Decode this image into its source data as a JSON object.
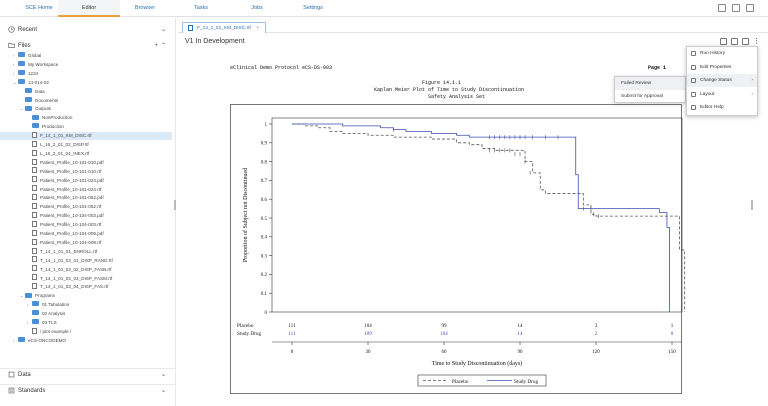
{
  "nav": {
    "tabs": [
      "SCE Home",
      "Editor",
      "Browser",
      "Tasks",
      "Jobs",
      "Settings"
    ],
    "active_tab": "Editor"
  },
  "sidebar": {
    "recent": "Recent",
    "files": "Files",
    "data": "Data",
    "standards": "Standards",
    "tree": [
      {
        "label": "Global",
        "kind": "folder",
        "depth": 1,
        "twisty": "›"
      },
      {
        "label": "My Workspace",
        "kind": "folder",
        "depth": 1,
        "twisty": "›"
      },
      {
        "label": "1234",
        "kind": "folder",
        "depth": 1,
        "twisty": "›"
      },
      {
        "label": "14-014-02",
        "kind": "folder",
        "depth": 1,
        "twisty": "⌄"
      },
      {
        "label": "Data",
        "kind": "folder",
        "depth": 2,
        "twisty": ""
      },
      {
        "label": "Documents",
        "kind": "folder",
        "depth": 2,
        "twisty": ""
      },
      {
        "label": "Outputs",
        "kind": "folder",
        "depth": 2,
        "twisty": "⌄"
      },
      {
        "label": "NonProduction",
        "kind": "folder",
        "depth": 3,
        "twisty": ""
      },
      {
        "label": "Production",
        "kind": "folder",
        "depth": 3,
        "twisty": ""
      },
      {
        "label": "F_14_1_01_KM_DISC.rtf",
        "kind": "file",
        "depth": 3,
        "twisty": "",
        "selected": true
      },
      {
        "label": "L_16_2_01_02_DISP.rtf",
        "kind": "file",
        "depth": 3,
        "twisty": ""
      },
      {
        "label": "L_16_2_01_04_INEX.rtf",
        "kind": "file",
        "depth": 3,
        "twisty": ""
      },
      {
        "label": "Patient_Profile_10-101-010.pdf",
        "kind": "file",
        "depth": 3,
        "twisty": ""
      },
      {
        "label": "Patient_Profile_10-101-010.rtf",
        "kind": "file",
        "depth": 3,
        "twisty": ""
      },
      {
        "label": "Patient_Profile_10-101-024.pdf",
        "kind": "file",
        "depth": 3,
        "twisty": ""
      },
      {
        "label": "Patient_Profile_10-101-024.rtf",
        "kind": "file",
        "depth": 3,
        "twisty": ""
      },
      {
        "label": "Patient_Profile_10-101-052.pdf",
        "kind": "file",
        "depth": 3,
        "twisty": ""
      },
      {
        "label": "Patient_Profile_10-101-052.rtf",
        "kind": "file",
        "depth": 3,
        "twisty": ""
      },
      {
        "label": "Patient_Profile_10-104-003.pdf",
        "kind": "file",
        "depth": 3,
        "twisty": ""
      },
      {
        "label": "Patient_Profile_10-104-003.rtf",
        "kind": "file",
        "depth": 3,
        "twisty": ""
      },
      {
        "label": "Patient_Profile_10-104-009.pdf",
        "kind": "file",
        "depth": 3,
        "twisty": ""
      },
      {
        "label": "Patient_Profile_10-104-009.rtf",
        "kind": "file",
        "depth": 3,
        "twisty": ""
      },
      {
        "label": "T_14_1_01_01_ENROLL.rtf",
        "kind": "file",
        "depth": 3,
        "twisty": ""
      },
      {
        "label": "T_14_1_01_02_01_DISP_RAND.rtf",
        "kind": "file",
        "depth": 3,
        "twisty": ""
      },
      {
        "label": "T_14_1_01_02_02_DISP_FASB.rtf",
        "kind": "file",
        "depth": 3,
        "twisty": ""
      },
      {
        "label": "T_14_1_01_02_03_DISP_FASM.rtf",
        "kind": "file",
        "depth": 3,
        "twisty": ""
      },
      {
        "label": "T_14_1_01_02_04_DISP_FAS.rtf",
        "kind": "file",
        "depth": 3,
        "twisty": ""
      },
      {
        "label": "Programs",
        "kind": "folder",
        "depth": 2,
        "twisty": "⌄"
      },
      {
        "label": "01 Tabulation",
        "kind": "folder",
        "depth": 3,
        "twisty": "›"
      },
      {
        "label": "02 Analysis",
        "kind": "folder",
        "depth": 3,
        "twisty": ""
      },
      {
        "label": "03 TLS",
        "kind": "folder",
        "depth": 3,
        "twisty": "›"
      },
      {
        "label": "/ plot example /",
        "kind": "file",
        "depth": 3,
        "twisty": ""
      },
      {
        "label": "eCS-ONCODEMO",
        "kind": "folder",
        "depth": 1,
        "twisty": "›"
      }
    ]
  },
  "editor": {
    "tab_label": "F_14_1_01_KM_DISC.rtf",
    "status_title": "V1 In Development"
  },
  "document": {
    "protocol": "eClinical Demo Protocol eCS-DS-003",
    "page": "Page 1",
    "figure_no": "Figure 14.1.1",
    "figure_title": "Kaplan Meier Plot of Time to Study Discontinuation",
    "population": "Safety Analysis Set"
  },
  "menus": {
    "main": [
      {
        "label": "Run History",
        "icon": "history-icon",
        "arrow": ""
      },
      {
        "label": "Edit Properties",
        "icon": "pencil-icon",
        "arrow": ""
      },
      {
        "label": "Change Status",
        "icon": "status-icon",
        "arrow": "›"
      },
      {
        "label": "Layout",
        "icon": "layout-icon",
        "arrow": "›"
      },
      {
        "label": "Editor Help",
        "icon": "help-icon",
        "arrow": ""
      }
    ],
    "sub": [
      "Failed Review",
      "Submit for Approval"
    ]
  },
  "chart_data": {
    "type": "line",
    "title": "",
    "xlabel": "Time to Study Discontinuation (days)",
    "ylabel": "Proportion of Subject not Discontinued",
    "xlim": [
      0,
      150
    ],
    "ylim": [
      0,
      1.0
    ],
    "x_ticks": [
      0,
      30,
      60,
      90,
      120,
      150
    ],
    "y_ticks": [
      0.0,
      0.1,
      0.2,
      0.3,
      0.4,
      0.5,
      0.6,
      0.7,
      0.8,
      0.9,
      1.0
    ],
    "legend_placement": "bottom",
    "colors": {
      "Placebo": "#555555",
      "Study Drug": "#3b4fb0"
    },
    "series": [
      {
        "name": "Placebo",
        "style": "dashed",
        "steps": [
          [
            0,
            1.0
          ],
          [
            5,
            0.99
          ],
          [
            10,
            0.98
          ],
          [
            15,
            0.96
          ],
          [
            20,
            0.95
          ],
          [
            30,
            0.94
          ],
          [
            40,
            0.93
          ],
          [
            55,
            0.92
          ],
          [
            65,
            0.9
          ],
          [
            70,
            0.89
          ],
          [
            75,
            0.87
          ],
          [
            80,
            0.86
          ],
          [
            85,
            0.86
          ],
          [
            92,
            0.8
          ],
          [
            95,
            0.74
          ],
          [
            98,
            0.65
          ],
          [
            100,
            0.63
          ],
          [
            110,
            0.63
          ],
          [
            115,
            0.57
          ],
          [
            118,
            0.52
          ],
          [
            120,
            0.51
          ],
          [
            150,
            0.51
          ],
          [
            153,
            0.33
          ],
          [
            155,
            0.0
          ]
        ],
        "censored": [
          [
            78,
            0.86
          ],
          [
            80,
            0.86
          ],
          [
            82,
            0.86
          ],
          [
            84,
            0.86
          ],
          [
            86,
            0.86
          ],
          [
            88,
            0.84
          ],
          [
            90,
            0.84
          ],
          [
            92,
            0.8
          ],
          [
            94,
            0.74
          ],
          [
            119,
            0.52
          ],
          [
            121,
            0.51
          ]
        ]
      },
      {
        "name": "Study Drug",
        "style": "solid",
        "steps": [
          [
            0,
            1.0
          ],
          [
            20,
            0.99
          ],
          [
            35,
            0.98
          ],
          [
            40,
            0.97
          ],
          [
            45,
            0.96
          ],
          [
            55,
            0.95
          ],
          [
            65,
            0.94
          ],
          [
            70,
            0.93
          ],
          [
            110,
            0.93
          ],
          [
            112,
            0.73
          ],
          [
            113,
            0.55
          ],
          [
            120,
            0.55
          ],
          [
            140,
            0.55
          ],
          [
            145,
            0.53
          ],
          [
            148,
            0.45
          ],
          [
            149,
            0.0
          ]
        ],
        "censored": [
          [
            40,
            0.97
          ],
          [
            78,
            0.93
          ],
          [
            80,
            0.93
          ],
          [
            82,
            0.93
          ],
          [
            84,
            0.93
          ],
          [
            86,
            0.93
          ],
          [
            88,
            0.93
          ],
          [
            90,
            0.93
          ],
          [
            92,
            0.93
          ],
          [
            95,
            0.93
          ],
          [
            100,
            0.93
          ],
          [
            105,
            0.93
          ],
          [
            115,
            0.55
          ],
          [
            118,
            0.55
          ]
        ]
      }
    ],
    "risk_table": {
      "times": [
        0,
        30,
        60,
        90,
        120,
        150
      ],
      "rows": [
        {
          "name": "Placebo",
          "values": [
            "111",
            "104",
            "99",
            "14",
            "3",
            "1"
          ]
        },
        {
          "name": "Study Drug",
          "values": [
            "111",
            "109",
            "104",
            "14",
            "2",
            "0"
          ]
        }
      ]
    }
  }
}
